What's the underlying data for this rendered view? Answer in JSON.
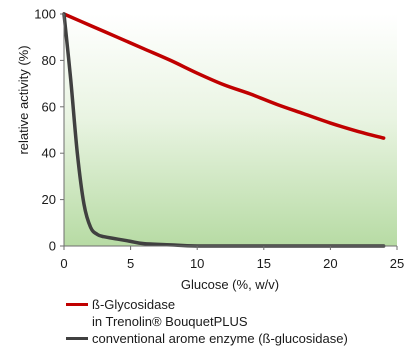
{
  "chart_data": {
    "type": "line",
    "xlabel": "Glucose (%, w/v)",
    "ylabel": "relative activity (%)",
    "xlim": [
      0,
      25
    ],
    "ylim": [
      0,
      100
    ],
    "x_ticks": [
      "0",
      "5",
      "10",
      "15",
      "20",
      "25"
    ],
    "y_ticks": [
      "0",
      "20",
      "40",
      "60",
      "80",
      "100"
    ],
    "grid": false,
    "legend_position": "bottom",
    "background": "gradient-green",
    "series": [
      {
        "name_line1": "ß-Glycosidase",
        "name_line2": "in Trenolin® BouquetPLUS",
        "color": "#c00000",
        "x": [
          0,
          2,
          4,
          6,
          8,
          10,
          12,
          14,
          16,
          18,
          20,
          22,
          24
        ],
        "y": [
          100,
          95,
          90,
          85,
          80,
          74.5,
          69.5,
          65.5,
          61,
          57,
          53,
          49.5,
          46.5
        ]
      },
      {
        "name_line1": "conventional arome enzyme (ß-glucosidase)",
        "color": "#404040",
        "x": [
          0,
          0.5,
          1,
          1.5,
          2,
          2.5,
          3,
          4,
          5,
          6,
          8,
          10,
          15,
          20,
          24
        ],
        "y": [
          100,
          72,
          40,
          18,
          8,
          5,
          4,
          3,
          2,
          1,
          0.5,
          0,
          0,
          0,
          0
        ]
      }
    ]
  }
}
